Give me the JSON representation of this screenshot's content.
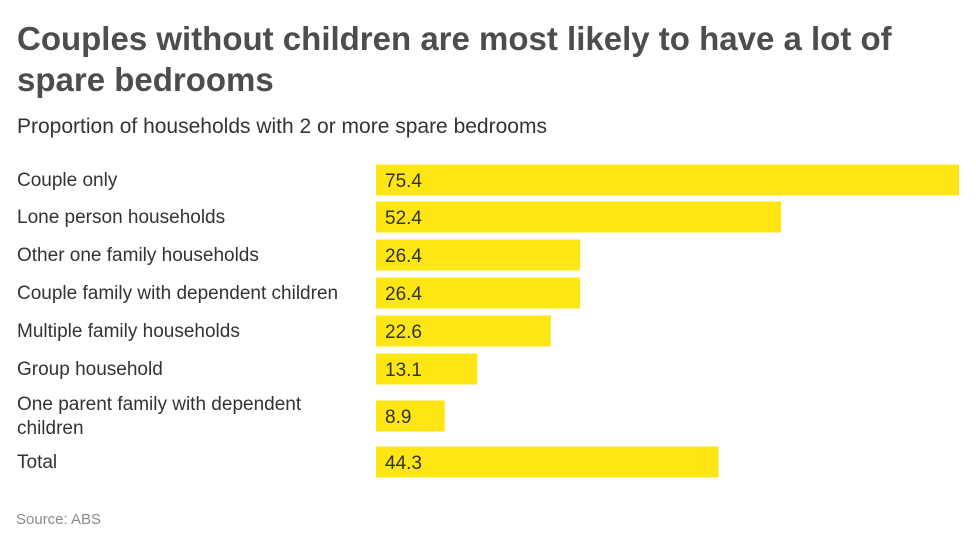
{
  "chart_data": {
    "type": "bar",
    "orientation": "horizontal",
    "title": "Couples without children are most likely to have a lot of spare bedrooms",
    "subtitle": "Proportion of households with 2 or more spare bedrooms",
    "categories": [
      "Couple only",
      "Lone person households",
      "Other one family households",
      "Couple family with dependent children",
      "Multiple family households",
      "Group household",
      "One parent family with dependent children",
      "Total"
    ],
    "category_lines": [
      [
        "Couple only"
      ],
      [
        "Lone person households"
      ],
      [
        "Other one family households"
      ],
      [
        "Couple family with dependent children"
      ],
      [
        "Multiple family households"
      ],
      [
        "Group household"
      ],
      [
        "One parent family with dependent",
        "children"
      ],
      [
        "Total"
      ]
    ],
    "values": [
      75.4,
      52.4,
      26.4,
      26.4,
      22.6,
      13.1,
      8.9,
      44.3
    ],
    "value_labels": [
      "75.4",
      "52.4",
      "26.4",
      "26.4",
      "22.6",
      "13.1",
      "8.9",
      "44.3"
    ],
    "xlim": [
      0,
      75.4
    ],
    "bar_color": "#fde614",
    "grid": false,
    "legend": "none",
    "source": "Source: ABS"
  }
}
